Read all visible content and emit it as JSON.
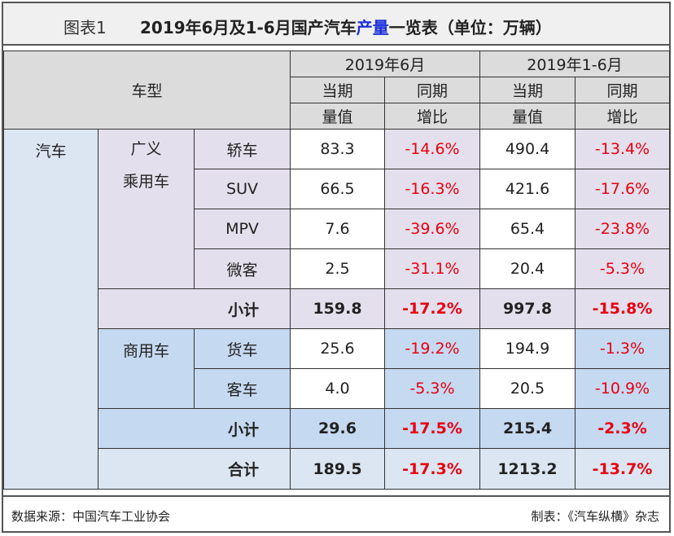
{
  "title": {
    "label": "图表1",
    "main_prefix": "2019年6月及1-6月国产汽车",
    "main_highlight": "产量",
    "main_suffix": "一览表（单位：万辆）"
  },
  "header": {
    "model": "车型",
    "june": "2019年6月",
    "h1": "2019年1-6月",
    "current_l1": "当期",
    "current_l2": "量值",
    "yoy_l1": "同期",
    "yoy_l2": "增比"
  },
  "categories": {
    "auto": "汽车",
    "passenger_l1": "广义",
    "passenger_l2": "乘用车",
    "commercial": "商用车",
    "subtotal": "小计",
    "total": "合计"
  },
  "rows": [
    {
      "type": "轿车",
      "june_value": "83.3",
      "june_yoy": "-14.6%",
      "h1_value": "490.4",
      "h1_yoy": "-13.4%"
    },
    {
      "type": "SUV",
      "june_value": "66.5",
      "june_yoy": "-16.3%",
      "h1_value": "421.6",
      "h1_yoy": "-17.6%"
    },
    {
      "type": "MPV",
      "june_value": "7.6",
      "june_yoy": "-39.6%",
      "h1_value": "65.4",
      "h1_yoy": "-23.8%"
    },
    {
      "type": "微客",
      "june_value": "2.5",
      "june_yoy": "-31.1%",
      "h1_value": "20.4",
      "h1_yoy": "-5.3%"
    },
    {
      "type": "货车",
      "june_value": "25.6",
      "june_yoy": "-19.2%",
      "h1_value": "194.9",
      "h1_yoy": "-1.3%"
    },
    {
      "type": "客车",
      "june_value": "4.0",
      "june_yoy": "-5.3%",
      "h1_value": "20.5",
      "h1_yoy": "-10.9%"
    }
  ],
  "passenger_subtotal": {
    "june_value": "159.8",
    "june_yoy": "-17.2%",
    "h1_value": "997.8",
    "h1_yoy": "-15.8%"
  },
  "commercial_subtotal": {
    "june_value": "29.6",
    "june_yoy": "-17.5%",
    "h1_value": "215.4",
    "h1_yoy": "-2.3%"
  },
  "total": {
    "june_value": "189.5",
    "june_yoy": "-17.3%",
    "h1_value": "1213.2",
    "h1_yoy": "-13.7%"
  },
  "footer": {
    "source": "数据来源：中国汽车工业协会",
    "made_by": "制表：《汽车纵横》杂志"
  },
  "colors": {
    "highlight": "#1a2fd8",
    "negative": "#e8000f",
    "header_bg": "#dcdcdc",
    "passenger_bg": "#e4dfec",
    "commercial_bg": "#c5d9f1",
    "category_bg": "#dce6f2"
  }
}
